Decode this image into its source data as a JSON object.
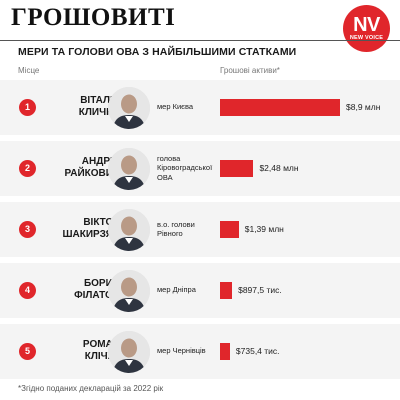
{
  "brand": "ГРОШОВИТІ",
  "logo": {
    "main": "NV",
    "sub": "NEW VOICE"
  },
  "subtitle": "МЕРИ ТА ГОЛОВИ ОВА З НАЙБІЛЬШИМИ СТАТКАМИ",
  "columns": {
    "place": "Місце",
    "assets": "Грошові активи*"
  },
  "footnote": "*Згідно поданих декларацій за 2022 рік",
  "colors": {
    "accent": "#e0262b",
    "row_bg": "#f4f4f4"
  },
  "rows": [
    {
      "rank": "1",
      "name_line1": "ВІТАЛІЙ",
      "name_line2": "КЛИЧКО",
      "role_lines": [
        "мер Києва"
      ],
      "value_label": "$8,9 млн"
    },
    {
      "rank": "2",
      "name_line1": "АНДРІЙ",
      "name_line2": "РАЙКОВИЧ",
      "role_lines": [
        "голова",
        "Кіровоградської",
        "ОВА"
      ],
      "value_label": "$2,48 млн"
    },
    {
      "rank": "3",
      "name_line1": "ВІКТОР",
      "name_line2": "ШАКИРЗЯН",
      "role_lines": [
        "в.о. голови",
        "Рівного"
      ],
      "value_label": "$1,39 млн"
    },
    {
      "rank": "4",
      "name_line1": "БОРИС",
      "name_line2": "ФІЛАТОВ",
      "role_lines": [
        "мер Дніпра"
      ],
      "value_label": "$897,5 тис."
    },
    {
      "rank": "5",
      "name_line1": "РОМАН",
      "name_line2": "КЛІЧУК",
      "role_lines": [
        "мер Чернівців"
      ],
      "value_label": "$735,4 тис."
    }
  ],
  "chart_data": {
    "type": "bar",
    "orientation": "horizontal",
    "title": "МЕРИ ТА ГОЛОВИ ОВА З НАЙБІЛЬШИМИ СТАТКАМИ",
    "xlabel": "Грошові активи*",
    "categories": [
      "ВІТАЛІЙ КЛИЧКО",
      "АНДРІЙ РАЙКОВИЧ",
      "ВІКТОР ШАКИРЗЯН",
      "БОРИС ФІЛАТОВ",
      "РОМАН КЛІЧУК"
    ],
    "values": [
      8900000,
      2480000,
      1390000,
      897500,
      735400
    ],
    "data_labels": [
      "$8,9 млн",
      "$2,48 млн",
      "$1,39 млн",
      "$897,5 тис.",
      "$735,4 тис."
    ],
    "grid": false,
    "legend": "none"
  }
}
